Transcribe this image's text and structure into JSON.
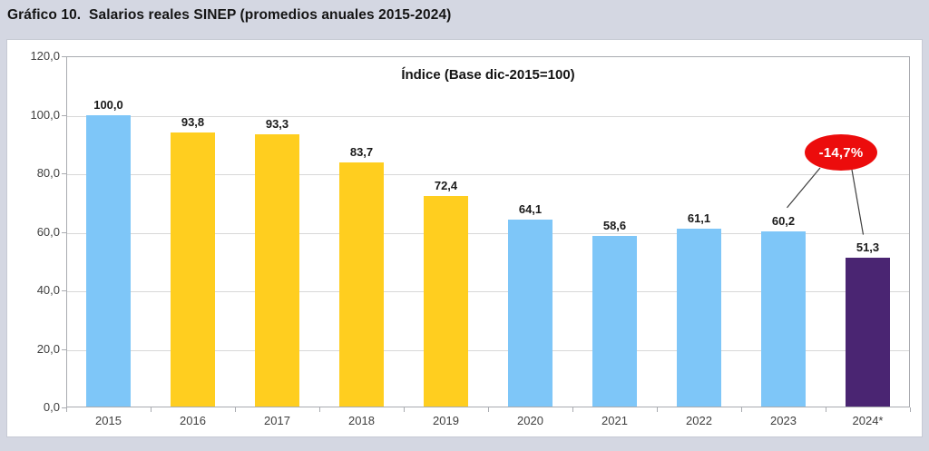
{
  "figure_title": "Gráfico 10.  Salarios reales SINEP (promedios anuales 2015-2024)",
  "colors": {
    "page_background": "#d4d7e2",
    "panel_background": "#ffffff",
    "axis_line": "#a9abb0",
    "gridline": "#d8d8d8",
    "bar_blue": "#7ec6f8",
    "bar_yellow": "#ffce1f",
    "bar_purple": "#4a2572",
    "annotation_red": "#ec0c0c",
    "annotation_text": "#ffffff",
    "label_text": "#1a1a1a",
    "axis_text": "#3f3f3f"
  },
  "chart_data": {
    "type": "bar",
    "title": "Índice (Base dic-2015=100)",
    "categories": [
      "2015",
      "2016",
      "2017",
      "2018",
      "2019",
      "2020",
      "2021",
      "2022",
      "2023",
      "2024*"
    ],
    "values": [
      100.0,
      93.8,
      93.3,
      83.7,
      72.4,
      64.1,
      58.6,
      61.1,
      60.2,
      51.3
    ],
    "value_labels": [
      "100,0",
      "93,8",
      "93,3",
      "83,7",
      "72,4",
      "64,1",
      "58,6",
      "61,1",
      "60,2",
      "51,3"
    ],
    "bar_colors": [
      "#7ec6f8",
      "#ffce1f",
      "#ffce1f",
      "#ffce1f",
      "#ffce1f",
      "#7ec6f8",
      "#7ec6f8",
      "#7ec6f8",
      "#7ec6f8",
      "#4a2572"
    ],
    "ylim": [
      0,
      120
    ],
    "ytick_step": 20,
    "ytick_labels": [
      "0,0",
      "20,0",
      "40,0",
      "60,0",
      "80,0",
      "100,0",
      "120,0"
    ],
    "grid": true,
    "legend": null,
    "annotation": {
      "label": "-14,7%",
      "fill": "#ec0c0c",
      "text_color": "#ffffff",
      "connects": [
        "2023",
        "2024*"
      ]
    }
  }
}
